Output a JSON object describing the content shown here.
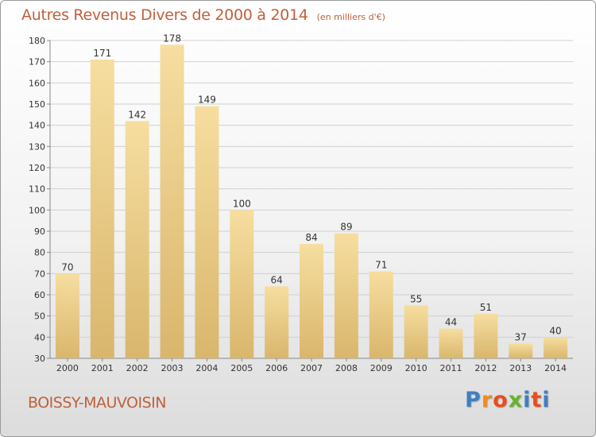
{
  "title": "Autres Revenus Divers de 2000 à 2014",
  "subtitle": "(en milliers d'€)",
  "town": "BOISSY-MAUVOISIN",
  "logo": {
    "letters": [
      "P",
      "r",
      "o",
      "x",
      "i",
      "t",
      "i"
    ],
    "colors": [
      "#3d7fc4",
      "#f28c1e",
      "#e94e1b",
      "#66b32e",
      "#3d7fc4",
      "#e94e1b",
      "#3d7fc4"
    ]
  },
  "colors": {
    "bar_light": "#f6dea0",
    "bar_dark": "#d9b66c",
    "title": "#c0603c",
    "grid": "#d0d0d0"
  },
  "chart_data": {
    "type": "bar",
    "categories": [
      "2000",
      "2001",
      "2002",
      "2003",
      "2004",
      "2005",
      "2006",
      "2007",
      "2008",
      "2009",
      "2010",
      "2011",
      "2012",
      "2013",
      "2014"
    ],
    "values": [
      70,
      171,
      142,
      178,
      149,
      100,
      64,
      84,
      89,
      71,
      55,
      44,
      51,
      37,
      40
    ],
    "ylim": [
      30,
      180
    ],
    "yticks": [
      30,
      40,
      50,
      60,
      70,
      80,
      90,
      100,
      110,
      120,
      130,
      140,
      150,
      160,
      170,
      180
    ],
    "grid": true,
    "data_labels": true
  }
}
